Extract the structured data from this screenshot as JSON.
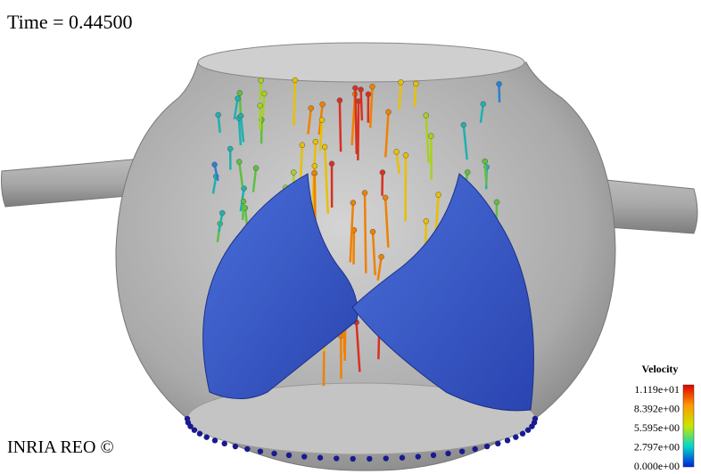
{
  "header": {
    "title": "Time = 0.44500"
  },
  "footer": {
    "credit": "INRIA REO ©"
  },
  "colorbar": {
    "title": "Velocity",
    "labels": [
      "1.119e+01",
      "8.392e+00",
      "5.595e+00",
      "2.797e+00",
      "0.000e+00"
    ]
  }
}
